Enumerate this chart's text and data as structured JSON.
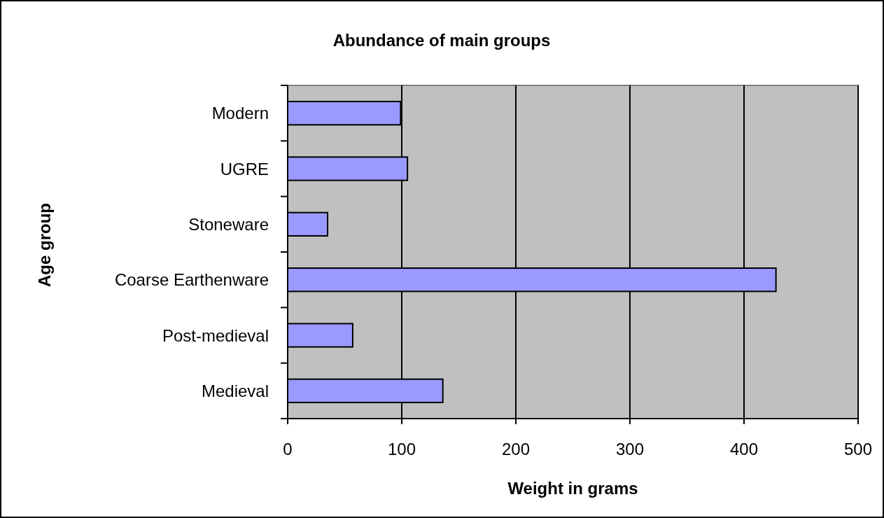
{
  "chart_data": {
    "type": "bar",
    "orientation": "horizontal",
    "title": "Abundance of main groups",
    "xlabel": "Weight in grams",
    "ylabel": "Age group",
    "categories": [
      "Modern",
      "UGRE",
      "Stoneware",
      "Coarse Earthenware",
      "Post-medieval",
      "Medieval"
    ],
    "values": [
      99,
      105,
      35,
      428,
      57,
      136
    ],
    "color": "#9999ff",
    "xlim": [
      0,
      500
    ],
    "xticks": [
      0,
      100,
      200,
      300,
      400,
      500
    ],
    "grid": "x"
  }
}
